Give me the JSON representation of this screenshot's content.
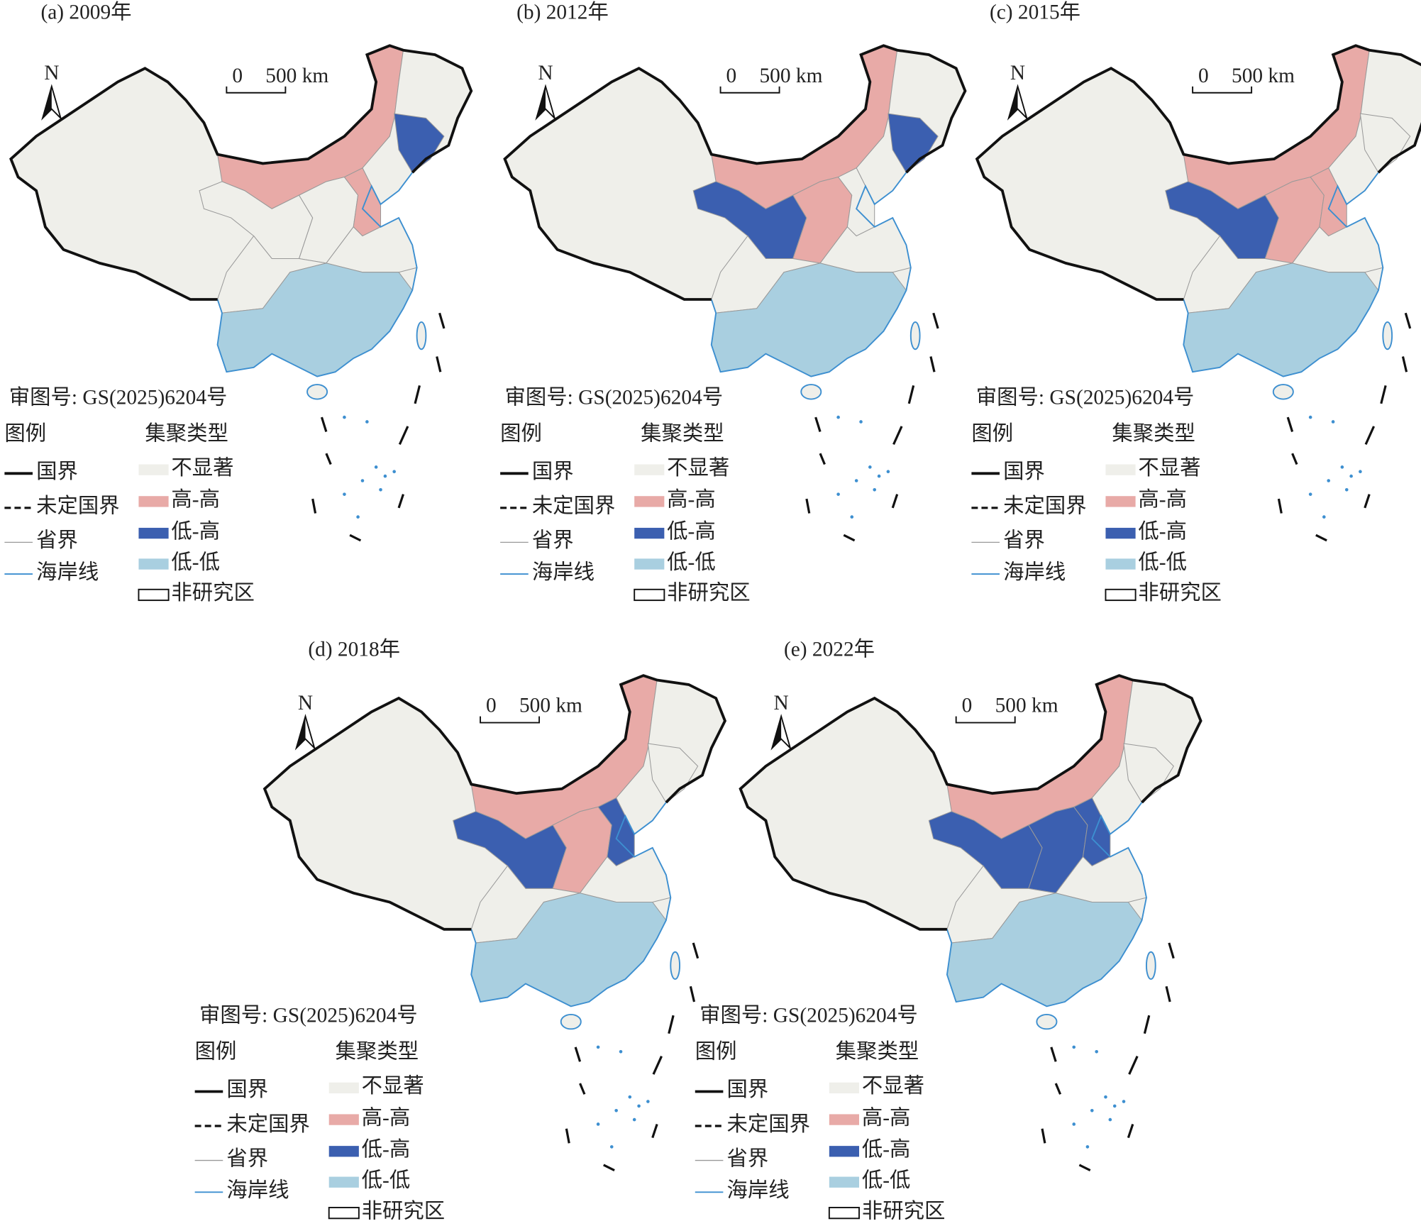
{
  "panels": [
    {
      "title": "(a) 2009年",
      "north": "N",
      "scale_zero": "0",
      "scale_label": "500 km",
      "approval": "审图号: GS(2025)6204号",
      "legend_title": "图例",
      "boundary_items": [
        "国界",
        "未定国界",
        "省界",
        "海岸线"
      ],
      "cluster_title": "集聚类型",
      "cluster_items": [
        {
          "label": "不显著",
          "color": "#efefea"
        },
        {
          "label": "高-高",
          "color": "#e8aaa7"
        },
        {
          "label": "低-高",
          "color": "#3b5fb0"
        },
        {
          "label": "低-低",
          "color": "#a9cfe0"
        },
        {
          "label": "非研究区",
          "color": "#ffffff"
        }
      ]
    },
    {
      "title": "(b) 2012年",
      "north": "N",
      "scale_zero": "0",
      "scale_label": "500 km",
      "approval": "审图号: GS(2025)6204号",
      "legend_title": "图例",
      "boundary_items": [
        "国界",
        "未定国界",
        "省界",
        "海岸线"
      ],
      "cluster_title": "集聚类型",
      "cluster_items": [
        {
          "label": "不显著",
          "color": "#efefea"
        },
        {
          "label": "高-高",
          "color": "#e8aaa7"
        },
        {
          "label": "低-高",
          "color": "#3b5fb0"
        },
        {
          "label": "低-低",
          "color": "#a9cfe0"
        },
        {
          "label": "非研究区",
          "color": "#ffffff"
        }
      ]
    },
    {
      "title": "(c) 2015年",
      "north": "N",
      "scale_zero": "0",
      "scale_label": "500 km",
      "approval": "审图号: GS(2025)6204号",
      "legend_title": "图例",
      "boundary_items": [
        "国界",
        "未定国界",
        "省界",
        "海岸线"
      ],
      "cluster_title": "集聚类型",
      "cluster_items": [
        {
          "label": "不显著",
          "color": "#efefea"
        },
        {
          "label": "高-高",
          "color": "#e8aaa7"
        },
        {
          "label": "低-高",
          "color": "#3b5fb0"
        },
        {
          "label": "低-低",
          "color": "#a9cfe0"
        },
        {
          "label": "非研究区",
          "color": "#ffffff"
        }
      ]
    },
    {
      "title": "(d) 2018年",
      "north": "N",
      "scale_zero": "0",
      "scale_label": "500 km",
      "approval": "审图号: GS(2025)6204号",
      "legend_title": "图例",
      "boundary_items": [
        "国界",
        "未定国界",
        "省界",
        "海岸线"
      ],
      "cluster_title": "集聚类型",
      "cluster_items": [
        {
          "label": "不显著",
          "color": "#efefea"
        },
        {
          "label": "高-高",
          "color": "#e8aaa7"
        },
        {
          "label": "低-高",
          "color": "#3b5fb0"
        },
        {
          "label": "低-低",
          "color": "#a9cfe0"
        },
        {
          "label": "非研究区",
          "color": "#ffffff"
        }
      ]
    },
    {
      "title": "(e) 2022年",
      "north": "N",
      "scale_zero": "0",
      "scale_label": "500 km",
      "approval": "审图号: GS(2025)6204号",
      "legend_title": "图例",
      "boundary_items": [
        "国界",
        "未定国界",
        "省界",
        "海岸线"
      ],
      "cluster_title": "集聚类型",
      "cluster_items": [
        {
          "label": "不显著",
          "color": "#efefea"
        },
        {
          "label": "高-高",
          "color": "#e8aaa7"
        },
        {
          "label": "低-高",
          "color": "#3b5fb0"
        },
        {
          "label": "低-低",
          "color": "#a9cfe0"
        },
        {
          "label": "非研究区",
          "color": "#ffffff"
        }
      ]
    }
  ]
}
